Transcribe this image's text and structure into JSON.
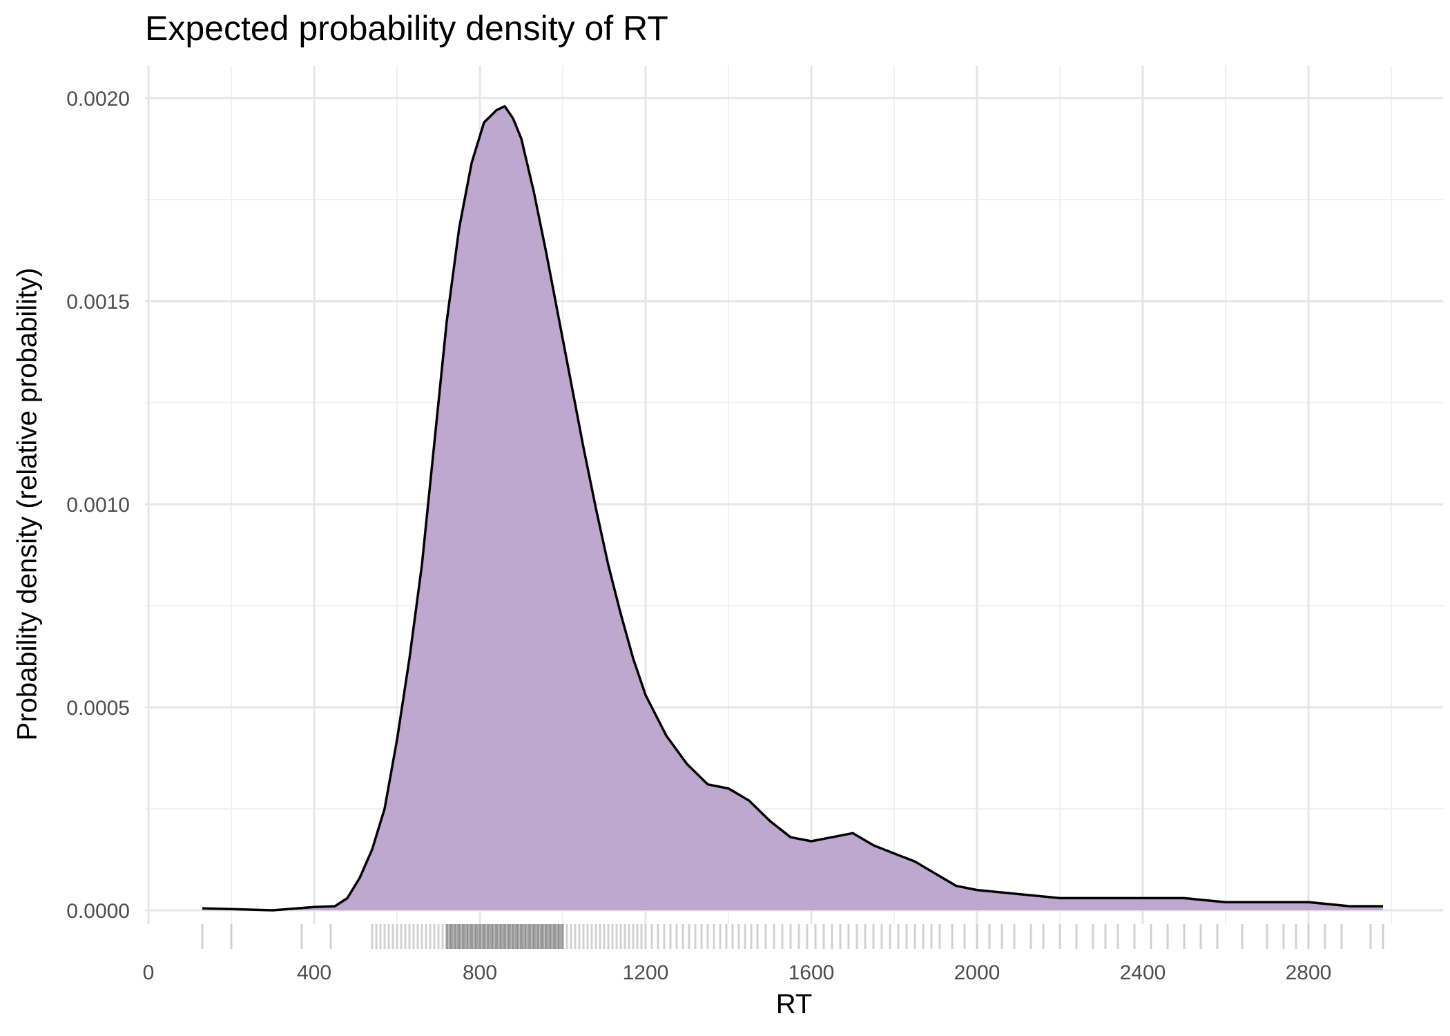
{
  "chart_data": {
    "type": "area",
    "title": "Expected probability density of RT",
    "xlabel": "RT",
    "ylabel": "Probability density (relative probability)",
    "xlim": [
      0,
      3100
    ],
    "ylim": [
      0,
      0.002
    ],
    "x_ticks": [
      "0",
      "400",
      "800",
      "1200",
      "1600",
      "2000",
      "2400",
      "2800"
    ],
    "y_ticks": [
      "0.0000",
      "0.0005",
      "0.0010",
      "0.0015",
      "0.0020"
    ],
    "grid": true,
    "fill_color": "#bfa8cf",
    "line_color": "#000000",
    "series": [
      {
        "x": [
          130,
          200,
          300,
          400,
          450,
          480,
          510,
          540,
          570,
          600,
          630,
          660,
          690,
          720,
          750,
          780,
          810,
          840,
          860,
          880,
          900,
          930,
          960,
          990,
          1020,
          1050,
          1080,
          1110,
          1140,
          1170,
          1200,
          1250,
          1300,
          1350,
          1400,
          1450,
          1500,
          1550,
          1600,
          1650,
          1700,
          1750,
          1800,
          1850,
          1900,
          1950,
          2000,
          2100,
          2200,
          2300,
          2400,
          2500,
          2600,
          2700,
          2750,
          2800,
          2900,
          2980
        ],
        "y": [
          5e-06,
          3e-06,
          0.0,
          8e-06,
          1e-05,
          3e-05,
          8e-05,
          0.00015,
          0.00025,
          0.00042,
          0.00062,
          0.00085,
          0.00115,
          0.00145,
          0.00168,
          0.00184,
          0.00194,
          0.00197,
          0.00198,
          0.00195,
          0.0019,
          0.00177,
          0.00162,
          0.00146,
          0.0013,
          0.00114,
          0.00099,
          0.00085,
          0.00073,
          0.00062,
          0.00053,
          0.00043,
          0.00036,
          0.00031,
          0.0003,
          0.00027,
          0.00022,
          0.00018,
          0.00017,
          0.00018,
          0.00019,
          0.00016,
          0.00014,
          0.00012,
          9e-05,
          6e-05,
          5e-05,
          4e-05,
          3e-05,
          3e-05,
          3e-05,
          3e-05,
          2e-05,
          2e-05,
          2e-05,
          2e-05,
          1e-05,
          1e-05
        ]
      }
    ],
    "rug": [
      130,
      200,
      370,
      440,
      540,
      550,
      560,
      570,
      580,
      590,
      600,
      610,
      620,
      630,
      640,
      650,
      660,
      670,
      680,
      690,
      700,
      710,
      720,
      730,
      740,
      750,
      760,
      770,
      780,
      790,
      800,
      810,
      820,
      830,
      840,
      850,
      860,
      870,
      880,
      890,
      900,
      910,
      920,
      930,
      940,
      950,
      960,
      970,
      980,
      990,
      1000,
      1010,
      1020,
      1030,
      1040,
      1050,
      1060,
      1070,
      1080,
      1090,
      1100,
      1110,
      1120,
      1130,
      1140,
      1150,
      1160,
      1170,
      1180,
      1190,
      1200,
      1215,
      1230,
      1245,
      1260,
      1275,
      1290,
      1305,
      1320,
      1335,
      1350,
      1365,
      1380,
      1395,
      1410,
      1425,
      1440,
      1455,
      1470,
      1490,
      1510,
      1530,
      1550,
      1570,
      1590,
      1610,
      1630,
      1650,
      1670,
      1690,
      1710,
      1730,
      1750,
      1770,
      1790,
      1810,
      1830,
      1850,
      1870,
      1890,
      1910,
      1940,
      1970,
      2000,
      2030,
      2060,
      2090,
      2130,
      2160,
      2200,
      2240,
      2280,
      2310,
      2340,
      2380,
      2420,
      2460,
      2500,
      2540,
      2580,
      2640,
      2700,
      2740,
      2770,
      2800,
      2840,
      2880,
      2950,
      2980
    ]
  }
}
